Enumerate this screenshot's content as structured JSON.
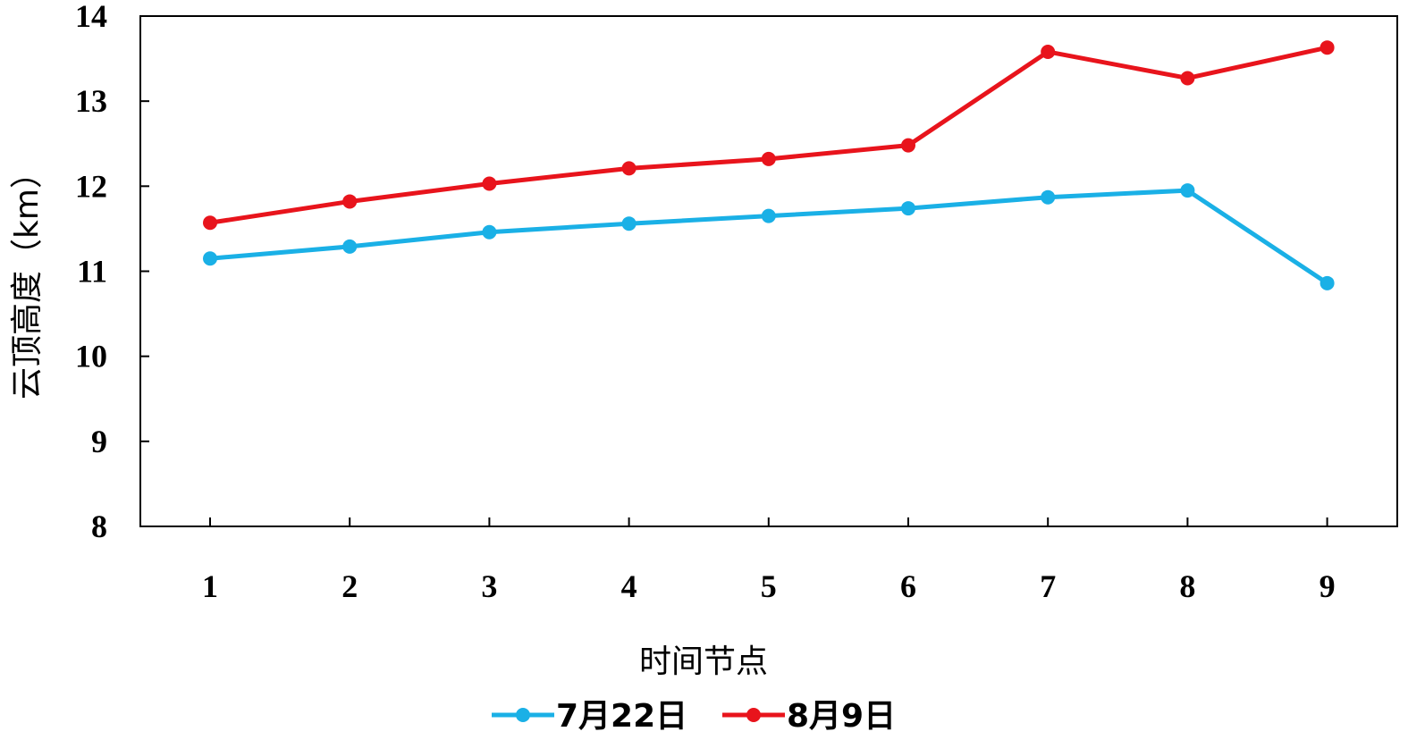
{
  "chart_data": {
    "type": "line",
    "title": "",
    "xlabel": "时间节点",
    "ylabel": "云顶高度（km）",
    "categories": [
      "1",
      "2",
      "3",
      "4",
      "5",
      "6",
      "7",
      "8",
      "9"
    ],
    "ylim": [
      8,
      14
    ],
    "yticks": [
      "8",
      "9",
      "10",
      "11",
      "12",
      "13",
      "14"
    ],
    "grid": false,
    "legend_position": "bottom-center",
    "series": [
      {
        "name": "7月22日",
        "color": "#1AB0E6",
        "values": [
          11.15,
          11.29,
          11.46,
          11.56,
          11.65,
          11.74,
          11.87,
          11.95,
          10.86
        ]
      },
      {
        "name": "8月9日",
        "color": "#E8141C",
        "values": [
          11.57,
          11.82,
          12.03,
          12.21,
          12.32,
          12.48,
          13.58,
          13.27,
          13.63
        ]
      }
    ]
  }
}
